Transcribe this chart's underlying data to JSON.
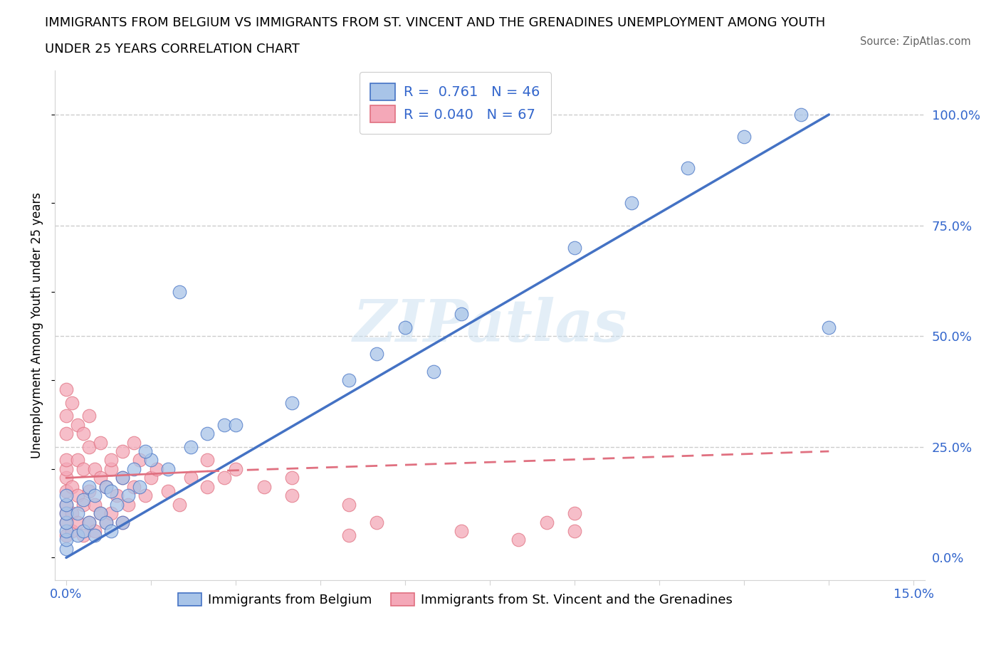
{
  "title_line1": "IMMIGRANTS FROM BELGIUM VS IMMIGRANTS FROM ST. VINCENT AND THE GRENADINES UNEMPLOYMENT AMONG YOUTH",
  "title_line2": "UNDER 25 YEARS CORRELATION CHART",
  "source": "Source: ZipAtlas.com",
  "ylabel": "Unemployment Among Youth under 25 years",
  "xlim": [
    -0.002,
    0.152
  ],
  "ylim": [
    -0.05,
    1.1
  ],
  "color_blue_fill": "#a8c4e8",
  "color_blue_edge": "#4472c4",
  "color_pink_fill": "#f4a8b8",
  "color_pink_edge": "#e07080",
  "color_line_blue": "#4472c4",
  "color_line_pink": "#e07080",
  "watermark": "ZIPatlas",
  "legend_blue_R": "0.761",
  "legend_blue_N": "46",
  "legend_pink_R": "0.040",
  "legend_pink_N": "67",
  "legend_label_blue": "Immigrants from Belgium",
  "legend_label_pink": "Immigrants from St. Vincent and the Grenadines",
  "blue_line_x0": 0.0,
  "blue_line_y0": 0.0,
  "blue_line_x1": 0.135,
  "blue_line_y1": 1.0,
  "pink_line_x0": 0.0,
  "pink_line_y0": 0.18,
  "pink_line_solid_x1": 0.025,
  "pink_line_solid_y1": 0.195,
  "pink_line_x1": 0.135,
  "pink_line_y1": 0.24,
  "blue_x": [
    0.0,
    0.0,
    0.0,
    0.0,
    0.0,
    0.0,
    0.0,
    0.002,
    0.002,
    0.003,
    0.003,
    0.004,
    0.004,
    0.005,
    0.005,
    0.006,
    0.007,
    0.007,
    0.008,
    0.008,
    0.009,
    0.01,
    0.01,
    0.011,
    0.012,
    0.013,
    0.015,
    0.018,
    0.02,
    0.022,
    0.025,
    0.028,
    0.03,
    0.04,
    0.05,
    0.055,
    0.06,
    0.065,
    0.07,
    0.09,
    0.1,
    0.11,
    0.12,
    0.13,
    0.135,
    0.014
  ],
  "blue_y": [
    0.02,
    0.04,
    0.06,
    0.08,
    0.1,
    0.12,
    0.14,
    0.05,
    0.1,
    0.06,
    0.13,
    0.08,
    0.16,
    0.05,
    0.14,
    0.1,
    0.08,
    0.16,
    0.06,
    0.15,
    0.12,
    0.08,
    0.18,
    0.14,
    0.2,
    0.16,
    0.22,
    0.2,
    0.6,
    0.25,
    0.28,
    0.3,
    0.3,
    0.35,
    0.4,
    0.46,
    0.52,
    0.42,
    0.55,
    0.7,
    0.8,
    0.88,
    0.95,
    1.0,
    0.52,
    0.24
  ],
  "pink_x": [
    0.0,
    0.0,
    0.0,
    0.0,
    0.0,
    0.0,
    0.0,
    0.0,
    0.0,
    0.0,
    0.0,
    0.001,
    0.001,
    0.001,
    0.002,
    0.002,
    0.002,
    0.003,
    0.003,
    0.003,
    0.004,
    0.004,
    0.004,
    0.005,
    0.005,
    0.005,
    0.006,
    0.006,
    0.007,
    0.007,
    0.008,
    0.008,
    0.009,
    0.01,
    0.01,
    0.011,
    0.012,
    0.013,
    0.014,
    0.015,
    0.016,
    0.018,
    0.02,
    0.022,
    0.025,
    0.025,
    0.028,
    0.03,
    0.035,
    0.04,
    0.04,
    0.05,
    0.05,
    0.055,
    0.07,
    0.08,
    0.085,
    0.09,
    0.09,
    0.01,
    0.002,
    0.003,
    0.001,
    0.004,
    0.006,
    0.008,
    0.012
  ],
  "pink_y": [
    0.05,
    0.08,
    0.1,
    0.12,
    0.15,
    0.18,
    0.2,
    0.22,
    0.28,
    0.32,
    0.38,
    0.06,
    0.1,
    0.16,
    0.08,
    0.14,
    0.22,
    0.05,
    0.12,
    0.2,
    0.08,
    0.15,
    0.25,
    0.06,
    0.12,
    0.2,
    0.1,
    0.18,
    0.08,
    0.16,
    0.1,
    0.2,
    0.14,
    0.08,
    0.18,
    0.12,
    0.16,
    0.22,
    0.14,
    0.18,
    0.2,
    0.15,
    0.12,
    0.18,
    0.16,
    0.22,
    0.18,
    0.2,
    0.16,
    0.18,
    0.14,
    0.05,
    0.12,
    0.08,
    0.06,
    0.04,
    0.08,
    0.1,
    0.06,
    0.24,
    0.3,
    0.28,
    0.35,
    0.32,
    0.26,
    0.22,
    0.26
  ]
}
